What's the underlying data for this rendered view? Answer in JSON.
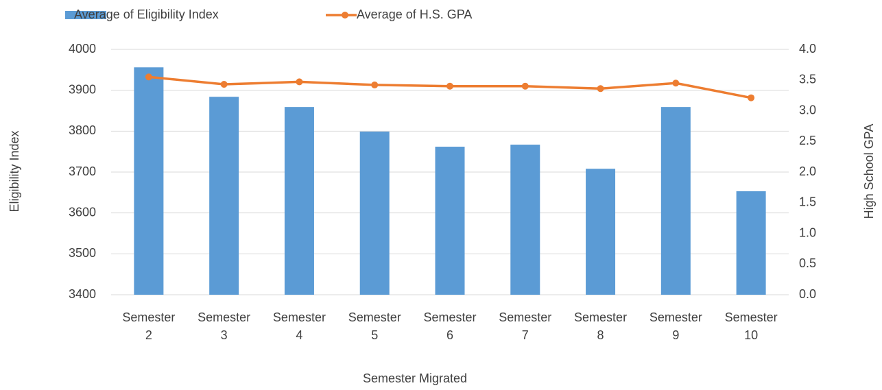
{
  "chart_data": {
    "type": "bar_line",
    "categories": [
      "Semester 2",
      "Semester 3",
      "Semester 4",
      "Semester 5",
      "Semester 6",
      "Semester 7",
      "Semester 8",
      "Semester 9",
      "Semester 10"
    ],
    "series": [
      {
        "name": "Average of Eligibility Index",
        "type": "bar",
        "color": "#5b9bd5",
        "values": [
          3956,
          3884,
          3859,
          3799,
          3762,
          3767,
          3708,
          3859,
          3653
        ]
      },
      {
        "name": "Average of H.S. GPA",
        "type": "line",
        "axis": "y2",
        "color": "#ed7d31",
        "values": [
          3.55,
          3.43,
          3.47,
          3.42,
          3.4,
          3.4,
          3.36,
          3.45,
          3.21
        ]
      }
    ],
    "xlabel": "Semester Migrated",
    "ylabel": "Eligibility Index",
    "y2label": "High School GPA",
    "ylim": [
      3400,
      4000
    ],
    "yticks": [
      3400,
      3500,
      3600,
      3700,
      3800,
      3900,
      4000
    ],
    "y2lim": [
      0,
      4
    ],
    "y2ticks": [
      {
        "value": 0,
        "label": "0.0"
      },
      0.5,
      {
        "value": 1,
        "label": "1.0"
      },
      1.5,
      {
        "value": 2,
        "label": "2.0"
      },
      2.5,
      {
        "value": 3,
        "label": "3.0"
      },
      3.5,
      {
        "value": 4,
        "label": "4.0"
      }
    ],
    "grid": true,
    "legend": "top"
  }
}
